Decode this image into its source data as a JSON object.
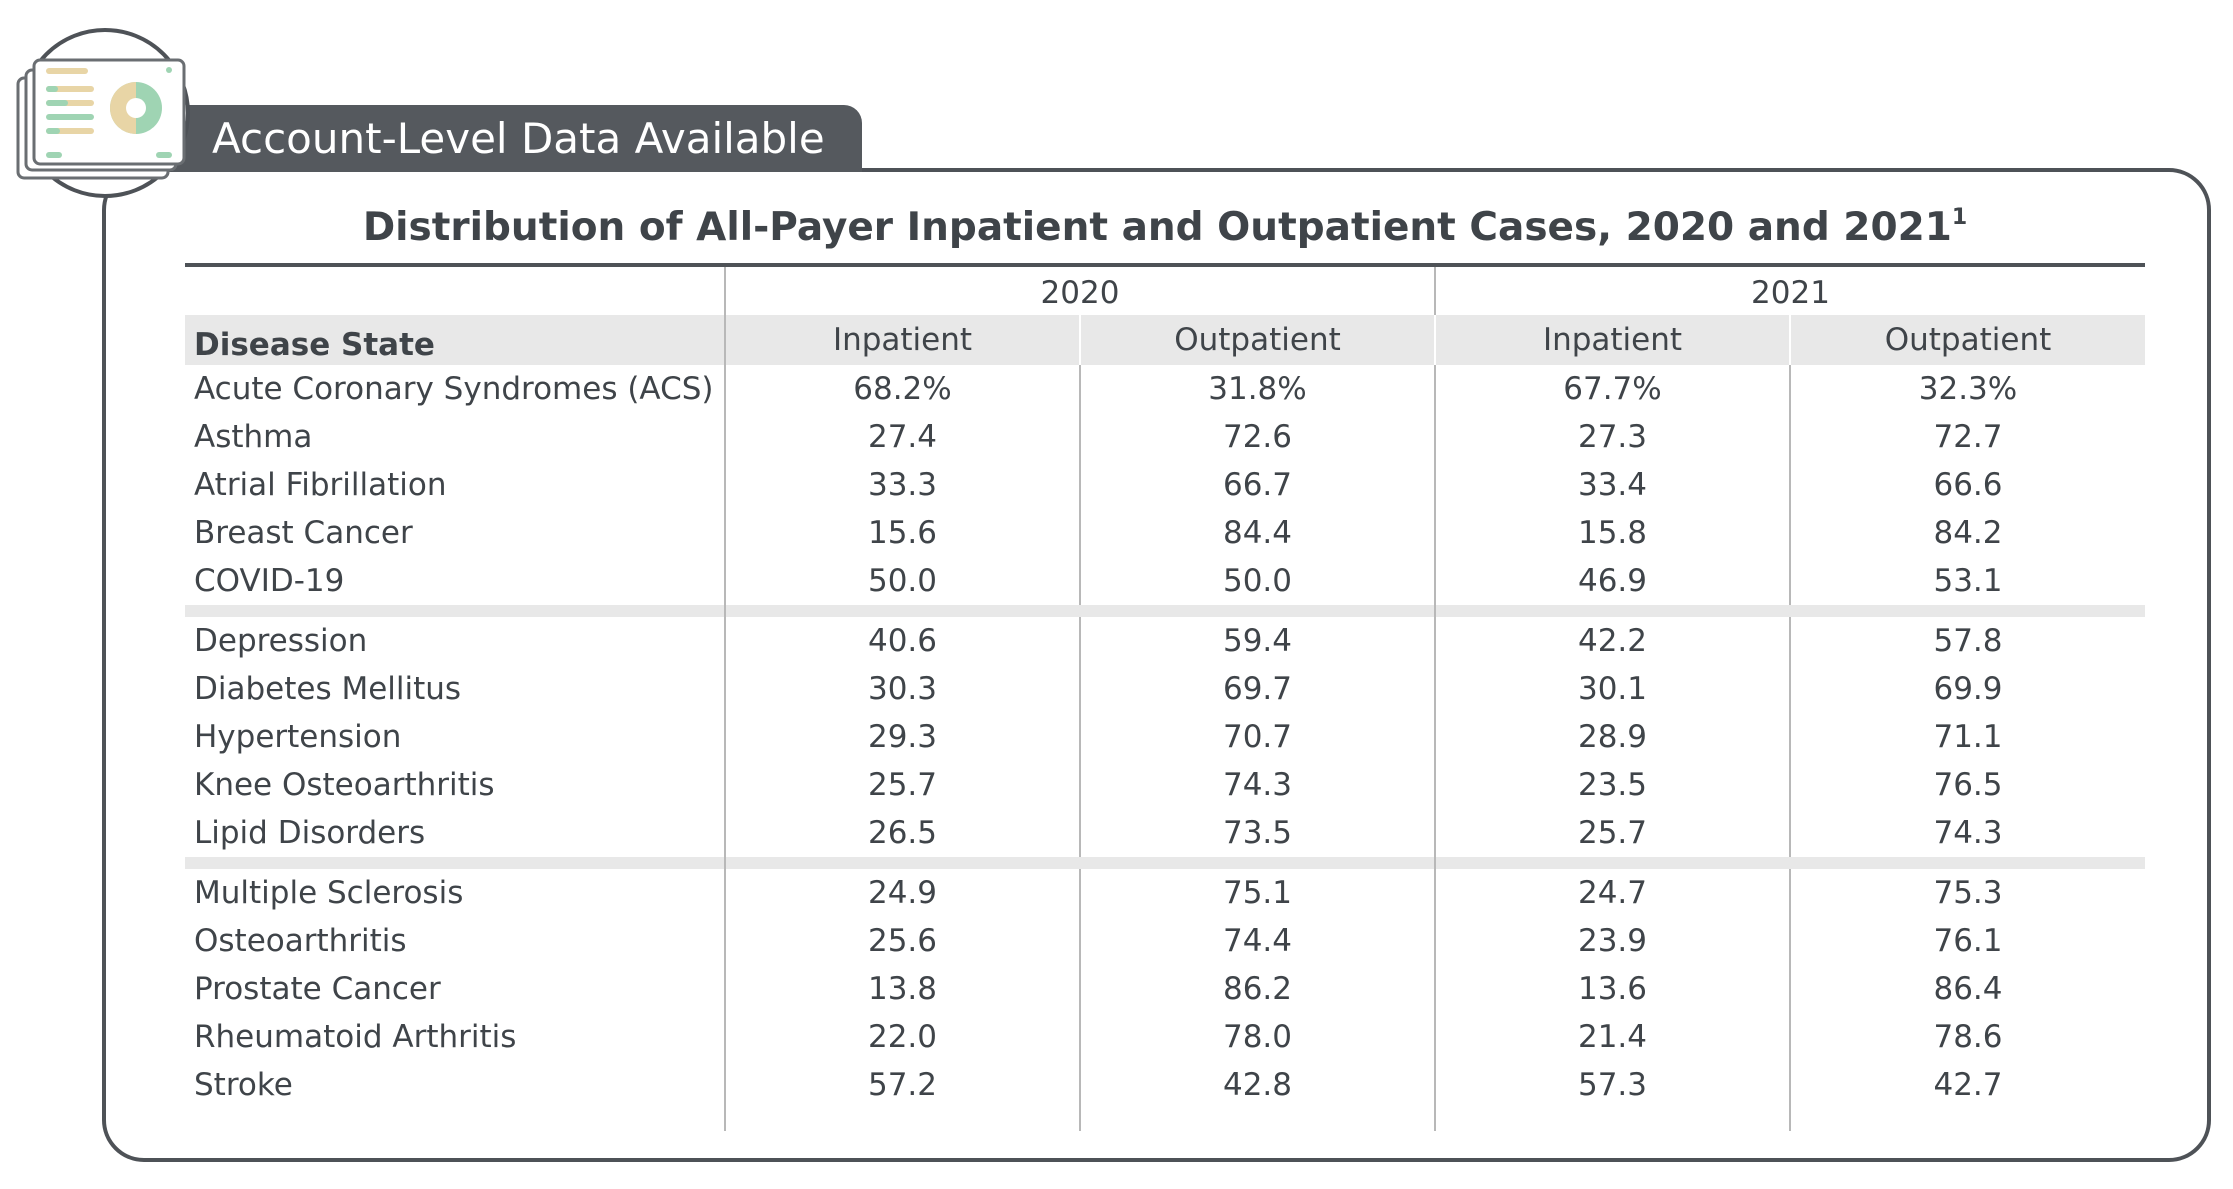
{
  "header": {
    "tab_label": "Account-Level Data Available"
  },
  "badge": {
    "icon": "report-dashboard-icon",
    "colors": {
      "tan": "#e8d5a6",
      "green": "#9fd4b3"
    }
  },
  "table": {
    "title": "Distribution of All-Payer Inpatient and Outpatient Cases, 2020 and 2021",
    "title_footnote": "1",
    "years": [
      "2020",
      "2021"
    ],
    "first_column_header": "Disease State",
    "subheaders": [
      "Inpatient",
      "Outpatient",
      "Inpatient",
      "Outpatient"
    ],
    "groups": [
      [
        {
          "name": "Acute Coronary Syndromes (ACS)",
          "values": [
            "68.2%",
            "31.8%",
            "67.7%",
            "32.3%"
          ]
        },
        {
          "name": "Asthma",
          "values": [
            "27.4",
            "72.6",
            "27.3",
            "72.7"
          ]
        },
        {
          "name": "Atrial Fibrillation",
          "values": [
            "33.3",
            "66.7",
            "33.4",
            "66.6"
          ]
        },
        {
          "name": "Breast Cancer",
          "values": [
            "15.6",
            "84.4",
            "15.8",
            "84.2"
          ]
        },
        {
          "name": "COVID-19",
          "values": [
            "50.0",
            "50.0",
            "46.9",
            "53.1"
          ]
        }
      ],
      [
        {
          "name": "Depression",
          "values": [
            "40.6",
            "59.4",
            "42.2",
            "57.8"
          ]
        },
        {
          "name": "Diabetes Mellitus",
          "values": [
            "30.3",
            "69.7",
            "30.1",
            "69.9"
          ]
        },
        {
          "name": "Hypertension",
          "values": [
            "29.3",
            "70.7",
            "28.9",
            "71.1"
          ]
        },
        {
          "name": "Knee Osteoarthritis",
          "values": [
            "25.7",
            "74.3",
            "23.5",
            "76.5"
          ]
        },
        {
          "name": "Lipid Disorders",
          "values": [
            "26.5",
            "73.5",
            "25.7",
            "74.3"
          ]
        }
      ],
      [
        {
          "name": "Multiple Sclerosis",
          "values": [
            "24.9",
            "75.1",
            "24.7",
            "75.3"
          ]
        },
        {
          "name": "Osteoarthritis",
          "values": [
            "25.6",
            "74.4",
            "23.9",
            "76.1"
          ]
        },
        {
          "name": "Prostate Cancer",
          "values": [
            "13.8",
            "86.2",
            "13.6",
            "86.4"
          ]
        },
        {
          "name": "Rheumatoid Arthritis",
          "values": [
            "22.0",
            "78.0",
            "21.4",
            "78.6"
          ]
        },
        {
          "name": "Stroke",
          "values": [
            "57.2",
            "42.8",
            "57.3",
            "42.7"
          ]
        }
      ]
    ]
  }
}
